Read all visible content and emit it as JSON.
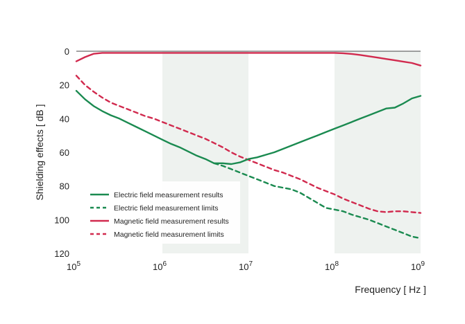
{
  "chart_data": {
    "type": "line",
    "title": "",
    "xlabel": "Frequency [ Hz ]",
    "ylabel": "Shielding effects [ dB ]",
    "x_scale": "log",
    "x_range": [
      100000,
      1000000000
    ],
    "y_range": [
      0,
      120
    ],
    "y_inverted": true,
    "x_ticks": [
      {
        "base": "10",
        "exp": "5"
      },
      {
        "base": "10",
        "exp": "6"
      },
      {
        "base": "10",
        "exp": "7"
      },
      {
        "base": "10",
        "exp": "8"
      },
      {
        "base": "10",
        "exp": "9"
      }
    ],
    "y_ticks": [
      "0",
      "20",
      "40",
      "60",
      "80",
      "100",
      "120"
    ],
    "shaded_bands": [
      [
        1000000,
        10000000
      ],
      [
        100000000,
        1000000000
      ]
    ],
    "legend_position": "bottom-left",
    "series": [
      {
        "name": "Electric field measurement results",
        "color": "#1a8a50",
        "style": "solid",
        "x": [
          100000,
          125900,
          158500,
          199500,
          251200,
          316200,
          398100,
          501200,
          631000,
          794300,
          1000000,
          1259000,
          1585000,
          1995000,
          2512000,
          3162000,
          3981000,
          5012000,
          6310000,
          7943000,
          10000000,
          12590000,
          15850000,
          19950000,
          25120000,
          31620000,
          39810000,
          50120000,
          63100000,
          79430000,
          100000000,
          125900000,
          158500000,
          199500000,
          251200000,
          316200000,
          398100000,
          501200000,
          631000000,
          794300000,
          1000000000
        ],
        "y": [
          23.5,
          28.5,
          32.5,
          35.5,
          38,
          40,
          42.5,
          45,
          47.5,
          50,
          52.5,
          55,
          57,
          59.5,
          62,
          64,
          66.5,
          66.5,
          67,
          66,
          64,
          63,
          61.5,
          60,
          58,
          56,
          54,
          52,
          50,
          48,
          46,
          44,
          42,
          40,
          38,
          36,
          34,
          33.5,
          31,
          28,
          26.5
        ]
      },
      {
        "name": "Electric field measurement limits",
        "color": "#1a8a50",
        "style": "dashed",
        "x": [
          3981000,
          5012000,
          6310000,
          7943000,
          10000000,
          12590000,
          15850000,
          19950000,
          25120000,
          31620000,
          39810000,
          50120000,
          63100000,
          79430000,
          100000000,
          125900000,
          158500000,
          199500000,
          251200000,
          316200000,
          398100000,
          501200000,
          631000000,
          794300000,
          1000000000
        ],
        "y": [
          66.5,
          68,
          70,
          72,
          74,
          76,
          78,
          80,
          81,
          82,
          84,
          87,
          90,
          93,
          94,
          95,
          97,
          98.5,
          100,
          102,
          104,
          106,
          108,
          110,
          111
        ]
      },
      {
        "name": "Magnetic field measurement results",
        "color": "#d12a4e",
        "style": "solid",
        "x": [
          100000,
          125900,
          158500,
          199500,
          251200,
          316200,
          398100,
          1000000,
          10000000,
          100000000,
          125900000,
          158500000,
          199500000,
          251200000,
          316200000,
          398100000,
          501200000,
          631000000,
          794300000,
          1000000000
        ],
        "y": [
          6,
          3.5,
          1.5,
          1,
          1,
          1,
          1,
          1,
          1,
          1,
          1.2,
          1.6,
          2.2,
          3,
          3.8,
          4.6,
          5.4,
          6.2,
          7,
          8.5
        ]
      },
      {
        "name": "Magnetic field measurement limits",
        "color": "#d12a4e",
        "style": "dashed",
        "x": [
          100000,
          125900,
          158500,
          199500,
          251200,
          316200,
          398100,
          501200,
          631000,
          794300,
          1000000,
          1259000,
          1585000,
          1995000,
          2512000,
          3162000,
          3981000,
          5012000,
          6310000,
          7943000,
          10000000,
          12590000,
          15850000,
          19950000,
          25120000,
          31620000,
          39810000,
          50120000,
          63100000,
          79430000,
          100000000,
          125900000,
          158500000,
          199500000,
          251200000,
          316200000,
          398100000,
          501200000,
          631000000,
          794300000,
          1000000000
        ],
        "y": [
          14.5,
          20,
          24,
          27.5,
          30.5,
          32.5,
          34.5,
          36.5,
          38.5,
          40,
          42,
          44,
          46,
          48,
          50,
          52,
          54.5,
          57,
          60,
          62.5,
          64.5,
          66.5,
          68.5,
          70.5,
          72,
          74,
          76,
          78.5,
          81,
          83,
          85,
          87.5,
          89.5,
          91.5,
          93.5,
          95,
          95.5,
          95,
          95,
          95.5,
          96
        ]
      }
    ]
  }
}
